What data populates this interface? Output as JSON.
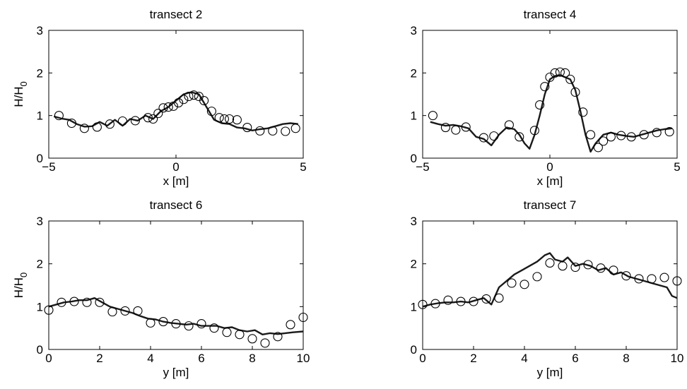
{
  "chart_data": [
    {
      "type": "line",
      "title": "transect 2",
      "xlabel": "x [m]",
      "ylabel": "H/H",
      "ylabel_sub": "0",
      "xlim": [
        -5,
        5
      ],
      "ylim": [
        0,
        3
      ],
      "xticks": [
        -5,
        0,
        5
      ],
      "yticks": [
        0,
        1,
        2,
        3
      ],
      "series": [
        {
          "style": "line",
          "x": [
            -4.8,
            -4.5,
            -4.2,
            -3.9,
            -3.6,
            -3.3,
            -3.0,
            -2.7,
            -2.4,
            -2.1,
            -1.8,
            -1.5,
            -1.2,
            -0.9,
            -0.6,
            -0.3,
            0.0,
            0.3,
            0.6,
            0.9,
            1.2,
            1.5,
            1.8,
            2.1,
            2.4,
            2.7,
            3.0,
            3.3,
            3.6,
            3.9,
            4.2,
            4.5,
            4.8
          ],
          "y": [
            0.98,
            0.93,
            0.9,
            0.8,
            0.74,
            0.75,
            0.85,
            0.76,
            0.9,
            0.76,
            0.92,
            0.88,
            1.0,
            0.92,
            1.1,
            1.2,
            1.35,
            1.5,
            1.55,
            1.5,
            1.2,
            0.9,
            0.82,
            0.8,
            0.72,
            0.7,
            0.65,
            0.68,
            0.7,
            0.75,
            0.8,
            0.82,
            0.8
          ]
        },
        {
          "style": "markers",
          "x": [
            -4.6,
            -4.1,
            -3.6,
            -3.1,
            -2.6,
            -2.1,
            -1.6,
            -1.1,
            -0.9,
            -0.7,
            -0.5,
            -0.3,
            -0.1,
            0.1,
            0.3,
            0.5,
            0.7,
            0.9,
            1.1,
            1.4,
            1.7,
            1.9,
            2.1,
            2.4,
            2.8,
            3.3,
            3.8,
            4.3,
            4.7
          ],
          "y": [
            1.0,
            0.82,
            0.7,
            0.73,
            0.8,
            0.87,
            0.88,
            0.95,
            0.92,
            1.05,
            1.18,
            1.2,
            1.22,
            1.3,
            1.38,
            1.45,
            1.48,
            1.45,
            1.35,
            1.1,
            0.95,
            0.92,
            0.92,
            0.9,
            0.72,
            0.64,
            0.64,
            0.63,
            0.7
          ]
        }
      ]
    },
    {
      "type": "line",
      "title": "transect 4",
      "xlabel": "x [m]",
      "ylabel": "",
      "xlim": [
        -5,
        5
      ],
      "ylim": [
        0,
        3
      ],
      "xticks": [
        -5,
        0,
        5
      ],
      "yticks": [
        0,
        1,
        2,
        3
      ],
      "series": [
        {
          "style": "line",
          "x": [
            -4.7,
            -4.4,
            -4.1,
            -3.8,
            -3.5,
            -3.2,
            -2.9,
            -2.6,
            -2.3,
            -2.0,
            -1.7,
            -1.4,
            -1.2,
            -1.0,
            -0.8,
            -0.6,
            -0.4,
            -0.2,
            0.0,
            0.2,
            0.4,
            0.6,
            0.8,
            1.0,
            1.2,
            1.4,
            1.6,
            1.8,
            2.1,
            2.4,
            2.7,
            3.0,
            3.3,
            3.6,
            3.9,
            4.2,
            4.5,
            4.8
          ],
          "y": [
            0.85,
            0.8,
            0.76,
            0.78,
            0.75,
            0.7,
            0.5,
            0.45,
            0.3,
            0.55,
            0.72,
            0.68,
            0.55,
            0.35,
            0.22,
            0.55,
            1.0,
            1.5,
            1.85,
            1.93,
            1.95,
            1.9,
            1.85,
            1.6,
            1.1,
            0.55,
            0.15,
            0.35,
            0.55,
            0.6,
            0.55,
            0.52,
            0.5,
            0.55,
            0.6,
            0.65,
            0.68,
            0.7
          ]
        },
        {
          "style": "markers",
          "x": [
            -4.6,
            -4.1,
            -3.7,
            -3.3,
            -2.6,
            -2.2,
            -1.6,
            -1.2,
            -0.6,
            -0.4,
            -0.2,
            0.0,
            0.2,
            0.4,
            0.6,
            0.8,
            1.0,
            1.3,
            1.6,
            1.9,
            2.1,
            2.4,
            2.8,
            3.2,
            3.7,
            4.2,
            4.7
          ],
          "y": [
            1.0,
            0.72,
            0.66,
            0.73,
            0.48,
            0.52,
            0.78,
            0.5,
            0.65,
            1.25,
            1.68,
            1.9,
            2.0,
            2.02,
            2.0,
            1.85,
            1.55,
            1.08,
            0.55,
            0.25,
            0.4,
            0.5,
            0.53,
            0.5,
            0.55,
            0.6,
            0.62
          ]
        }
      ]
    },
    {
      "type": "line",
      "title": "transect 6",
      "xlabel": "y [m]",
      "ylabel": "H/H",
      "ylabel_sub": "0",
      "xlim": [
        0,
        10
      ],
      "ylim": [
        0,
        3
      ],
      "xticks": [
        0,
        2,
        4,
        6,
        8,
        10
      ],
      "yticks": [
        0,
        1,
        2,
        3
      ],
      "series": [
        {
          "style": "line",
          "x": [
            0.0,
            0.3,
            0.6,
            0.9,
            1.2,
            1.5,
            1.8,
            2.1,
            2.4,
            2.7,
            3.0,
            3.3,
            3.6,
            3.9,
            4.2,
            4.5,
            4.8,
            5.1,
            5.4,
            5.7,
            6.0,
            6.3,
            6.6,
            6.9,
            7.2,
            7.5,
            7.8,
            8.1,
            8.4,
            8.7,
            9.0,
            9.3,
            9.6,
            10.0
          ],
          "y": [
            1.0,
            1.05,
            1.1,
            1.12,
            1.15,
            1.15,
            1.2,
            1.1,
            1.0,
            0.95,
            0.9,
            0.85,
            0.78,
            0.72,
            0.7,
            0.65,
            0.62,
            0.6,
            0.58,
            0.6,
            0.55,
            0.55,
            0.55,
            0.5,
            0.52,
            0.45,
            0.42,
            0.45,
            0.35,
            0.38,
            0.36,
            0.38,
            0.4,
            0.42
          ]
        },
        {
          "style": "markers",
          "x": [
            0.0,
            0.5,
            1.0,
            1.5,
            2.0,
            2.5,
            3.0,
            3.5,
            4.0,
            4.5,
            5.0,
            5.5,
            6.0,
            6.5,
            7.0,
            7.5,
            8.0,
            8.5,
            9.0,
            9.5,
            10.0
          ],
          "y": [
            0.92,
            1.1,
            1.12,
            1.1,
            1.1,
            0.88,
            0.9,
            0.9,
            0.62,
            0.65,
            0.6,
            0.55,
            0.6,
            0.5,
            0.4,
            0.35,
            0.25,
            0.15,
            0.3,
            0.58,
            0.75
          ]
        }
      ]
    },
    {
      "type": "line",
      "title": "transect 7",
      "xlabel": "y [m]",
      "ylabel": "",
      "xlim": [
        0,
        10
      ],
      "ylim": [
        0,
        3
      ],
      "xticks": [
        0,
        2,
        4,
        6,
        8,
        10
      ],
      "yticks": [
        0,
        1,
        2,
        3
      ],
      "series": [
        {
          "style": "line",
          "x": [
            0.0,
            0.3,
            0.6,
            0.9,
            1.2,
            1.5,
            1.8,
            2.1,
            2.4,
            2.7,
            3.0,
            3.3,
            3.6,
            3.9,
            4.2,
            4.5,
            4.8,
            5.0,
            5.2,
            5.5,
            5.7,
            6.0,
            6.3,
            6.6,
            6.9,
            7.2,
            7.5,
            7.8,
            8.1,
            8.4,
            8.7,
            9.0,
            9.3,
            9.6,
            9.8,
            10.0
          ],
          "y": [
            1.0,
            1.05,
            1.08,
            1.1,
            1.1,
            1.12,
            1.1,
            1.15,
            1.2,
            1.05,
            1.45,
            1.6,
            1.75,
            1.85,
            1.95,
            2.05,
            2.2,
            2.25,
            2.1,
            2.05,
            2.15,
            1.95,
            2.0,
            1.95,
            1.85,
            1.9,
            1.75,
            1.8,
            1.7,
            1.65,
            1.6,
            1.55,
            1.5,
            1.45,
            1.25,
            1.2
          ]
        },
        {
          "style": "markers",
          "x": [
            0.0,
            0.5,
            1.0,
            1.5,
            2.0,
            2.5,
            3.0,
            3.5,
            4.0,
            4.5,
            5.0,
            5.5,
            6.0,
            6.5,
            7.0,
            7.5,
            8.0,
            8.5,
            9.0,
            9.5,
            10.0
          ],
          "y": [
            1.05,
            1.07,
            1.15,
            1.12,
            1.12,
            1.18,
            1.2,
            1.55,
            1.52,
            1.7,
            2.02,
            1.95,
            1.92,
            1.98,
            1.9,
            1.85,
            1.72,
            1.65,
            1.65,
            1.68,
            1.6
          ]
        }
      ]
    }
  ]
}
